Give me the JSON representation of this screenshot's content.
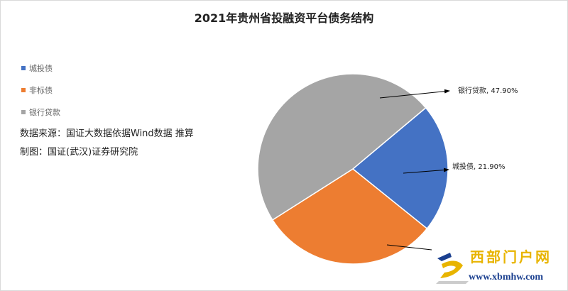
{
  "chart_data": {
    "type": "pie",
    "title": "2021年贵州省投融资平台债务结构",
    "legend_position": "left",
    "slices": [
      {
        "name": "城投债",
        "value": 21.9,
        "color": "#4472c4",
        "label": "城投债, 21.90%"
      },
      {
        "name": "非标债",
        "value": 30.2,
        "color": "#ed7d31",
        "label": ""
      },
      {
        "name": "银行贷款",
        "value": 47.9,
        "color": "#a5a5a5",
        "label": "银行贷款, 47.90%"
      }
    ]
  },
  "notes": {
    "source": "数据来源：国证大数据依据Wind数据 推算",
    "author": "制图：国证(武汉)证券研究院"
  },
  "watermark": {
    "name": "西部门户网",
    "url": "www.xbmhw.com"
  }
}
